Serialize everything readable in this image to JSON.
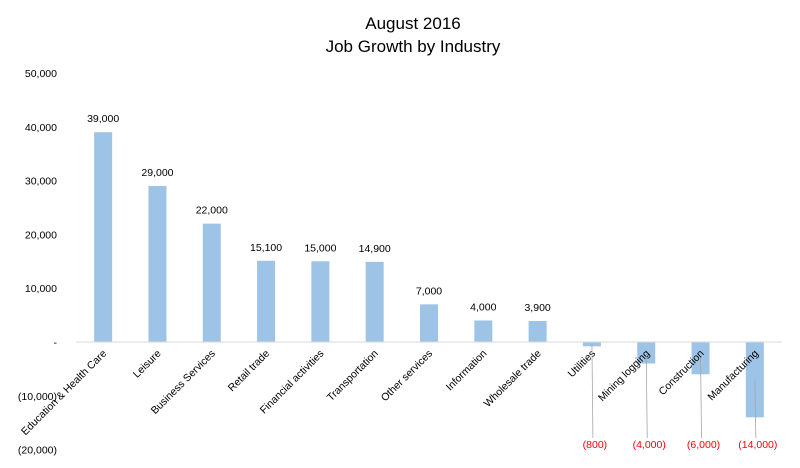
{
  "chart_data": {
    "type": "bar",
    "title": "August 2016",
    "subtitle": "Job Growth by Industry",
    "categories": [
      "Education & Health Care",
      "Leisure",
      "Business Services",
      "Retail trade",
      "Financial activities",
      "Transportation",
      "Other services",
      "Information",
      "Wholesale trade",
      "Utilities",
      "Mining  logging",
      "Construction",
      "Manufacturing"
    ],
    "values": [
      39000,
      29000,
      22000,
      15100,
      15000,
      14900,
      7000,
      4000,
      3900,
      -800,
      -4000,
      -6000,
      -14000
    ],
    "data_labels": [
      "39,000",
      "29,000",
      "22,000",
      "15,100",
      "15,000",
      "14,900",
      "7,000",
      "4,000",
      "3,900",
      "(800)",
      "(4,000)",
      "(6,000)",
      "(14,000)"
    ],
    "y_ticks": [
      50000,
      40000,
      30000,
      20000,
      10000,
      0,
      -10000,
      -20000
    ],
    "y_tick_labels": [
      "50,000",
      "40,000",
      "30,000",
      "20,000",
      "10,000",
      "-",
      "(10,000)",
      "(20,000)"
    ],
    "ylim": [
      -20000,
      50000
    ],
    "xlabel": "",
    "ylabel": "",
    "grid": false,
    "legend": "none",
    "bar_color": "#9dc3e6",
    "negative_label_color": "#ff0000",
    "positive_label_color": "#000000",
    "axis_color": "#d9d9d9"
  }
}
